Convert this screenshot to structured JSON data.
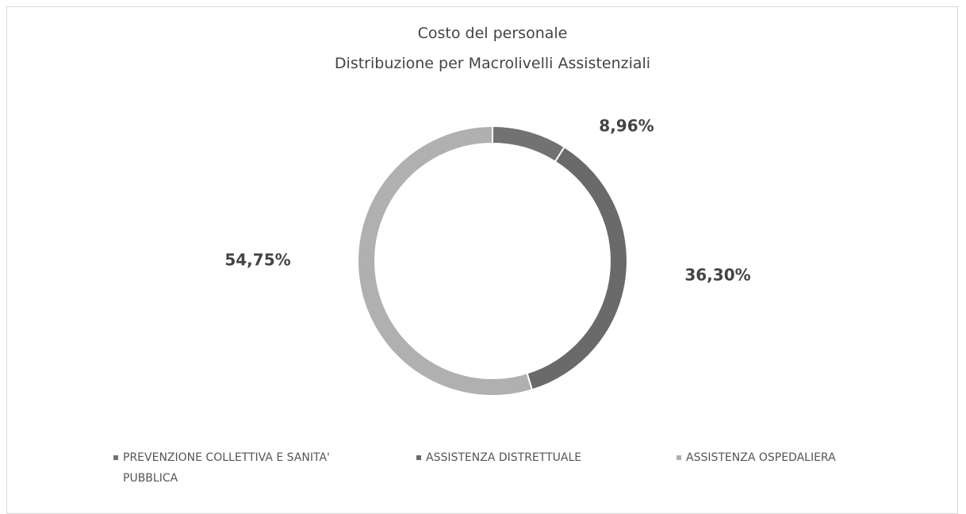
{
  "chart_data": {
    "type": "donut",
    "title": "Costo del personale",
    "subtitle": "Distribuzione per Macrolivelli Assistenziali",
    "categories": [
      "PREVENZIONE COLLETTIVA E SANITA' PUBBLICA",
      "ASSISTENZA DISTRETTUALE",
      "ASSISTENZA OSPEDALIERA"
    ],
    "values": [
      8.96,
      36.3,
      54.75
    ],
    "value_labels": [
      "8,96%",
      "36,30%",
      "54,75%"
    ],
    "colors": [
      "#727272",
      "#6a6a6a",
      "#b0b0b0"
    ],
    "legend": "bottom"
  }
}
